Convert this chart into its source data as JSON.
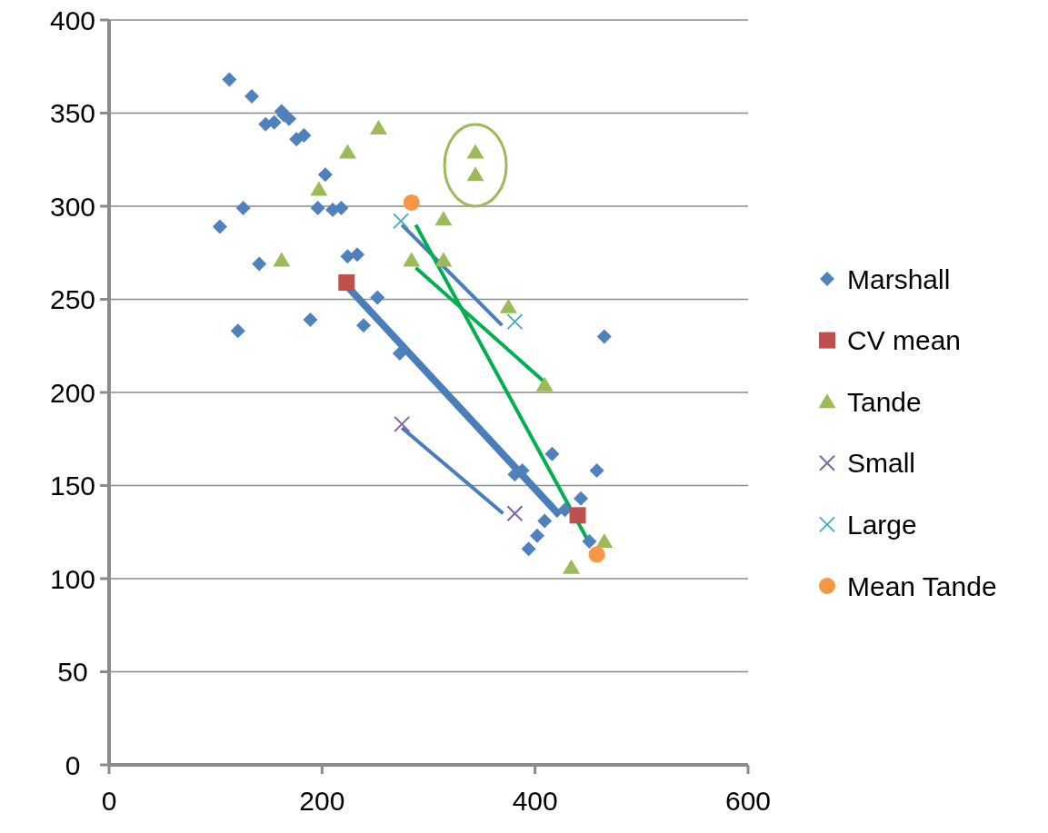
{
  "chart_data": {
    "type": "scatter",
    "xlim": [
      0,
      600
    ],
    "xticks": [
      0,
      200,
      400,
      600
    ],
    "ylim": [
      0,
      400
    ],
    "yticks": [
      0,
      50,
      100,
      150,
      200,
      250,
      300,
      350,
      400
    ],
    "grid": "y",
    "legend": "right",
    "series": [
      {
        "name": "Marshall",
        "color": "#4f81bd",
        "marker": "diamond",
        "x": [
          113,
          134,
          147,
          155,
          162,
          164,
          169,
          176,
          183,
          203,
          104,
          126,
          141,
          121,
          189,
          196,
          210,
          218,
          224,
          233,
          239,
          252,
          273,
          381,
          388,
          416,
          458,
          443,
          428,
          409,
          402,
          394,
          451,
          465
        ],
        "values": [
          368,
          359,
          344,
          345,
          351,
          349,
          347,
          336,
          338,
          317,
          289,
          299,
          269,
          233,
          239,
          299,
          298,
          299,
          273,
          274,
          236,
          251,
          221,
          156,
          158,
          167,
          158,
          143,
          137,
          131,
          123,
          116,
          120,
          230
        ]
      },
      {
        "name": "CV mean",
        "color": "#c0504d",
        "marker": "square",
        "x": [
          223,
          440
        ],
        "values": [
          259,
          134
        ]
      },
      {
        "name": "Tande",
        "color": "#9bbb59",
        "marker": "triangle",
        "x": [
          253,
          224,
          197,
          162,
          344,
          344,
          314,
          284,
          314,
          375,
          409,
          465,
          434
        ],
        "values": [
          342,
          329,
          309,
          271,
          329,
          317,
          293,
          271,
          271,
          246,
          204,
          120,
          106
        ]
      },
      {
        "name": "Small",
        "color": "#8064a2",
        "marker": "cross",
        "x": [
          275,
          381
        ],
        "values": [
          183,
          135
        ]
      },
      {
        "name": "Large",
        "color": "#4bacc6",
        "marker": "cross",
        "x": [
          274,
          381
        ],
        "values": [
          292,
          238
        ]
      },
      {
        "name": "Mean Tande",
        "color": "#f79646",
        "marker": "circle",
        "x": [
          284,
          458
        ],
        "values": [
          302,
          113
        ]
      },
      {
        "type": "line",
        "color": "#4a7ebb",
        "x": [
          222,
          423
        ],
        "values": [
          258,
          134
        ]
      },
      {
        "type": "line",
        "color": "#4a7ebb",
        "x": [
          275,
          369
        ],
        "values": [
          290,
          236
        ]
      },
      {
        "type": "line",
        "color": "#4a7ebb",
        "x": [
          275,
          370
        ],
        "values": [
          181,
          135
        ]
      },
      {
        "type": "line",
        "color": "#00b050",
        "x": [
          288,
          451
        ],
        "values": [
          290,
          119
        ]
      },
      {
        "type": "line",
        "color": "#00b050",
        "x": [
          288,
          410
        ],
        "values": [
          267,
          205
        ]
      }
    ]
  }
}
